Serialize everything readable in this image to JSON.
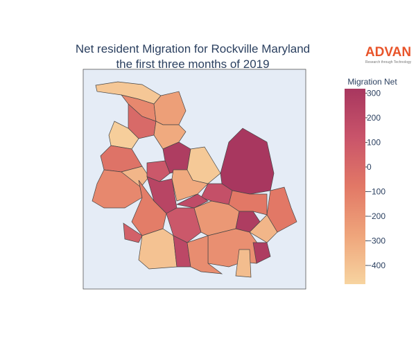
{
  "chart_data": {
    "type": "choropleth",
    "title": "Net resident Migration for Rockville Maryland",
    "subtitle": "the first three months of 2019",
    "colorbar_title": "Migration Net",
    "clim": [
      -476,
      318
    ],
    "colorscale": [
      "#f7d4a0",
      "#efa57b",
      "#e27866",
      "#c9546a",
      "#a8375f"
    ],
    "cticks": [
      300,
      200,
      100,
      0,
      {
        "value": -100,
        "label": "−100"
      },
      {
        "value": -200,
        "label": "−200"
      },
      {
        "value": -300,
        "label": "−300"
      },
      {
        "value": -400,
        "label": "−400"
      }
    ],
    "values": [
      -420,
      -150,
      -250,
      0,
      -300,
      -450,
      -50,
      -150,
      -350,
      280,
      100,
      220,
      -300,
      -430,
      320,
      150,
      -100,
      50,
      100,
      -220,
      180,
      -80,
      -80,
      280,
      -350,
      -180,
      -400,
      200,
      -170,
      -380,
      280
    ]
  },
  "logo": {
    "name": "ADVAN",
    "tagline": "Research through Technology"
  }
}
